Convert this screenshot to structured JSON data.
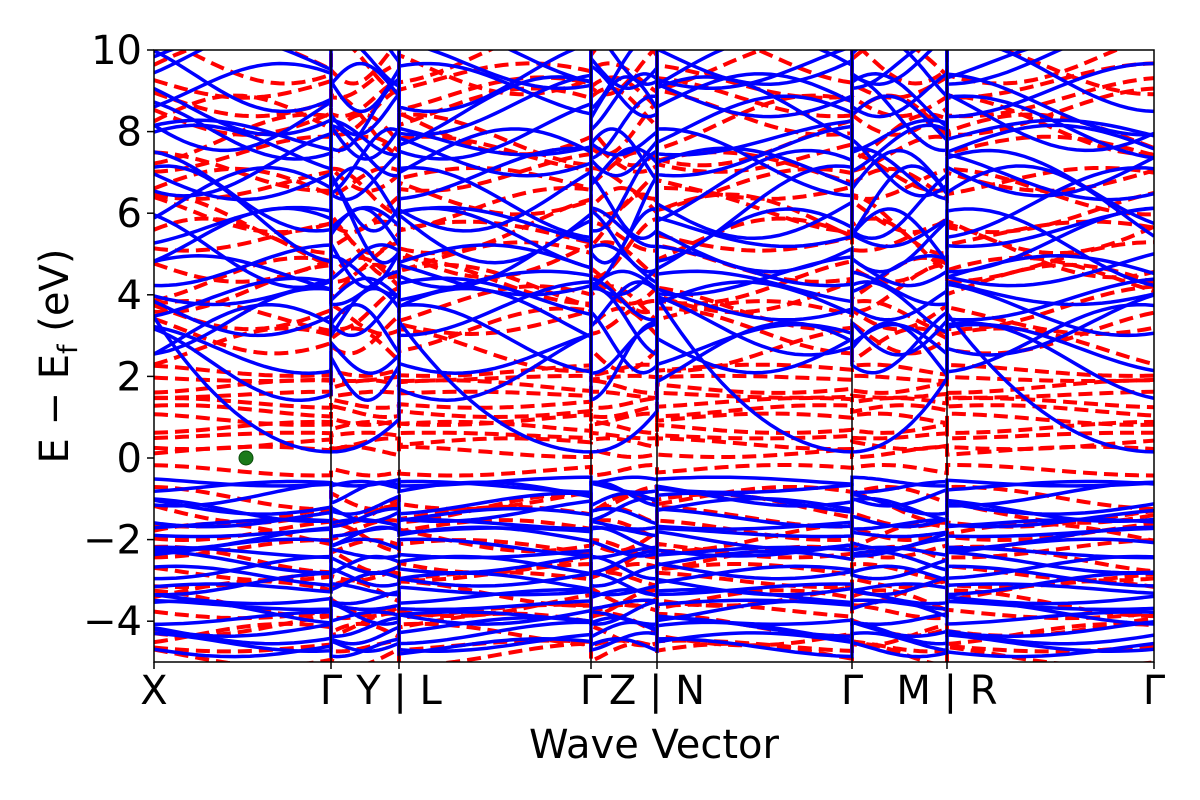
{
  "chart_data": {
    "type": "line",
    "xlabel": "Wave Vector",
    "ylabel_parts": [
      "E − E",
      "f",
      " (eV)"
    ],
    "ylim": [
      -5,
      10
    ],
    "y_ticks": [
      "−4",
      "−2",
      "0",
      "2",
      "4",
      "6",
      "8",
      "10"
    ],
    "y_tick_values": [
      -4,
      -2,
      0,
      2,
      4,
      6,
      8,
      10
    ],
    "x_ticks": [
      "X",
      "Γ",
      "Y | L",
      "Γ",
      "Z | N",
      "Γ",
      "M | R",
      "Γ"
    ],
    "segment_boundaries": [
      0,
      0.177,
      0.245,
      0.437,
      0.503,
      0.698,
      0.793,
      1.0
    ],
    "grid": false,
    "series": [
      {
        "style": "solid",
        "color": "#0000ff"
      },
      {
        "style": "dashed",
        "color": "#ff0000"
      }
    ],
    "marker": {
      "x": 0.092,
      "y": 0.0,
      "color": "#1a7a1a"
    }
  }
}
